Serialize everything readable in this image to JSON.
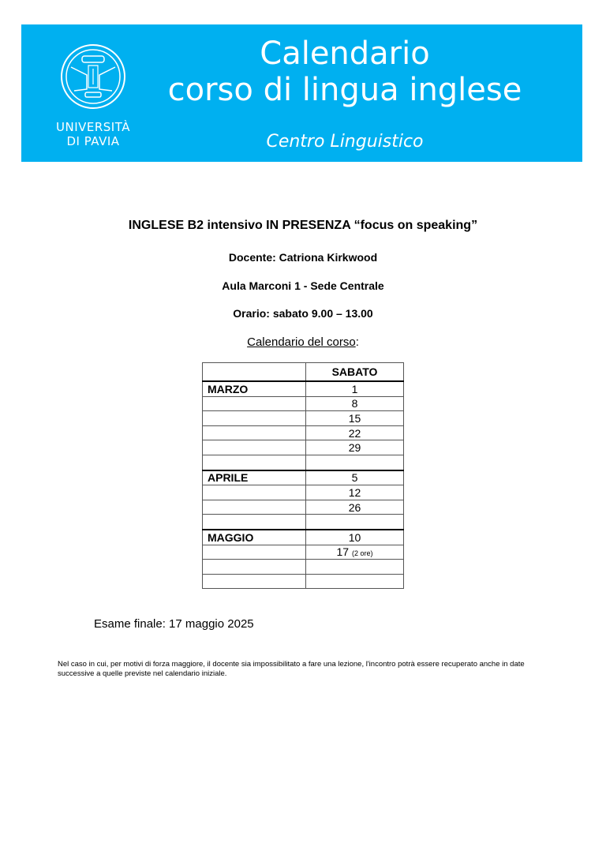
{
  "header": {
    "logo_text_line1": "UNIVERSITÀ",
    "logo_text_line2": "DI PAVIA",
    "title_line1": "Calendario",
    "title_line2": "corso di lingua inglese",
    "subtitle": "Centro Linguistico",
    "banner_color": "#00b0f0"
  },
  "course": {
    "title": "INGLESE B2 intensivo IN PRESENZA “focus on speaking”",
    "teacher": "Docente: Catriona Kirkwood",
    "room": "Aula Marconi 1 - Sede Centrale",
    "schedule": "Orario: sabato 9.00 – 13.00",
    "calendar_label": "Calendario del corso",
    "calendar_colon": ":"
  },
  "table": {
    "header": [
      "",
      "SABATO"
    ],
    "rows": [
      {
        "month": "MARZO",
        "day": "1",
        "note": ""
      },
      {
        "month": "",
        "day": "8",
        "note": ""
      },
      {
        "month": "",
        "day": "15",
        "note": ""
      },
      {
        "month": "",
        "day": "22",
        "note": ""
      },
      {
        "month": "",
        "day": "29",
        "note": ""
      },
      {
        "month": "",
        "day": "",
        "note": ""
      },
      {
        "month": "APRILE",
        "day": "5",
        "note": ""
      },
      {
        "month": "",
        "day": "12",
        "note": ""
      },
      {
        "month": "",
        "day": "26",
        "note": ""
      },
      {
        "month": "",
        "day": "",
        "note": ""
      },
      {
        "month": "MAGGIO",
        "day": "10",
        "note": ""
      },
      {
        "month": "",
        "day": "17",
        "note": "(2 ore)"
      },
      {
        "month": "",
        "day": "",
        "note": ""
      },
      {
        "month": "",
        "day": "",
        "note": ""
      }
    ]
  },
  "exam": "Esame finale: 17 maggio 2025",
  "note": "Nel caso in cui, per motivi di forza maggiore, il docente sia impossibilitato a fare una lezione, l'incontro potrà essere recuperato anche in date successive a quelle previste nel calendario iniziale."
}
